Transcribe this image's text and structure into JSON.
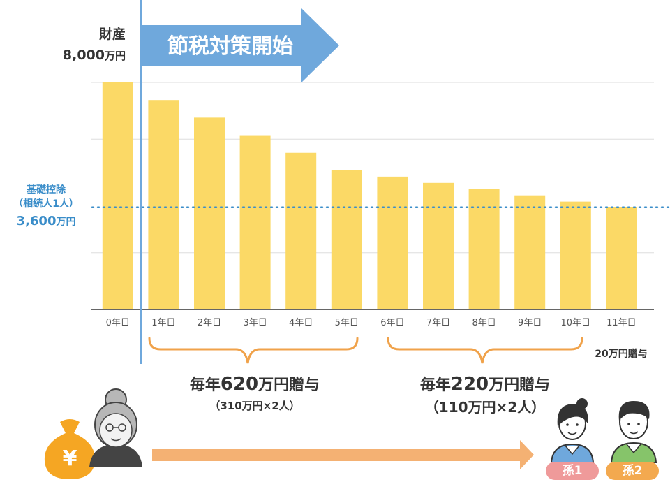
{
  "chart_data": {
    "type": "bar",
    "categories": [
      "0年目",
      "1年目",
      "2年目",
      "3年目",
      "4年目",
      "5年目",
      "6年目",
      "7年目",
      "8年目",
      "9年目",
      "10年目",
      "11年目"
    ],
    "values": [
      8000,
      7380,
      6760,
      6140,
      5520,
      4900,
      4680,
      4460,
      4240,
      4020,
      3800,
      3600
    ],
    "ylim": [
      0,
      8000
    ],
    "grid": true,
    "reference_line": {
      "value": 3600,
      "label_lines": [
        "基礎控除",
        "（相続人1人）"
      ],
      "value_text": "3,600",
      "unit_text": "万円"
    },
    "bar_color": "#fbd966"
  },
  "asset": {
    "label": "財産",
    "value_text": "8,000",
    "unit_text": "万円"
  },
  "banner": {
    "text": "節税対策開始",
    "color": "#6fa8dc"
  },
  "periods": [
    {
      "main_prefix": "毎年",
      "amount": "620",
      "main_suffix": "万円贈与",
      "sub": "（310万円×2人）"
    },
    {
      "main_prefix": "毎年",
      "amount": "220",
      "main_suffix": "万円贈与",
      "sub": "（110万円×2人）"
    }
  ],
  "last_gift": "20万円贈与",
  "money_bag_symbol": "¥",
  "recipients": [
    {
      "label": "孫1",
      "color": "#ef9a9a"
    },
    {
      "label": "孫2",
      "color": "#f3a94f"
    }
  ],
  "colors": {
    "divider": "#6fa8dc",
    "brace": "#f0a24a",
    "flow_arrow": "#f4b173",
    "money_bag": "#f5a623",
    "grid": "#dddddd",
    "axis": "#333333"
  }
}
